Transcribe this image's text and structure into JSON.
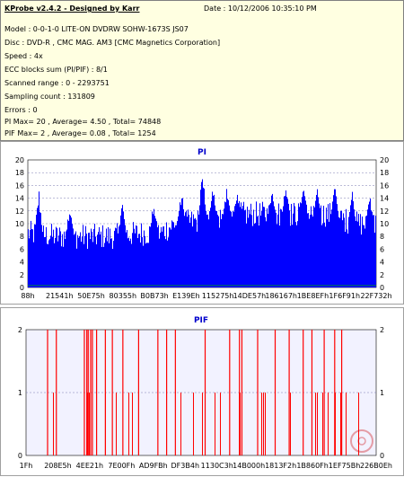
{
  "info": {
    "title": "KProbe v2.4.2 - Designed by Karr",
    "date": "Date : 10/12/2006 10:35:10 PM",
    "lines": [
      "Model : 0-0-1-0 LITE-ON DVDRW SOHW-1673S JS07",
      "Disc : DVD-R , CMC MAG. AM3 [CMC Magnetics Corporation]",
      "Speed : 4x",
      "ECC blocks sum (PI/PIF) : 8/1",
      "Scanned range : 0 - 2293751",
      "Sampling count : 131809",
      "Errors : 0",
      "PI Max= 20 , Average= 4.50 , Total= 74848",
      "PIF Max= 2 , Average= 0.08 , Total= 1254"
    ]
  },
  "chart_data": [
    {
      "type": "bar",
      "title": "PI",
      "ylim": [
        0,
        20
      ],
      "yticks": [
        0,
        2,
        4,
        6,
        8,
        10,
        12,
        14,
        16,
        18,
        20
      ],
      "xtick_labels": [
        "88h",
        "21541h",
        "50E75h",
        "80355h",
        "B0B73h",
        "E139Eh",
        "115275h",
        "14DE57h",
        "186167h",
        "1BE8EFh",
        "1F6F91h",
        "22F732h"
      ],
      "profile": [
        [
          0,
          8.5
        ],
        [
          0.08,
          8
        ],
        [
          0.16,
          8
        ],
        [
          0.24,
          8
        ],
        [
          0.32,
          8.5
        ],
        [
          0.38,
          8.5
        ],
        [
          0.42,
          10
        ],
        [
          0.5,
          10.5
        ],
        [
          0.56,
          11
        ],
        [
          0.62,
          11.5
        ],
        [
          0.7,
          11.5
        ],
        [
          0.78,
          11.5
        ],
        [
          0.86,
          11.5
        ],
        [
          0.94,
          10
        ],
        [
          1.0,
          10
        ]
      ],
      "peaks": [
        [
          0.03,
          16
        ],
        [
          0.12,
          14
        ],
        [
          0.27,
          14
        ],
        [
          0.36,
          14
        ],
        [
          0.44,
          15.5
        ],
        [
          0.5,
          20
        ],
        [
          0.53,
          17
        ],
        [
          0.57,
          16
        ],
        [
          0.6,
          15.5
        ],
        [
          0.7,
          15.5
        ],
        [
          0.74,
          17
        ],
        [
          0.79,
          16.5
        ],
        [
          0.83,
          15.5
        ],
        [
          0.88,
          16.5
        ],
        [
          0.93,
          15.5
        ],
        [
          0.98,
          15
        ]
      ]
    },
    {
      "type": "bar",
      "title": "PIF",
      "ylim": [
        0,
        2
      ],
      "yticks": [
        0,
        1,
        2
      ],
      "xtick_labels": [
        "1Fh",
        "208E5h",
        "4EE21h",
        "7E00Fh",
        "AD9FBh",
        "DF3B4h",
        "1130C3h",
        "14B000h",
        "1813F2h",
        "1B860Fh",
        "1EF75Bh",
        "226B0Eh"
      ],
      "values_2": [
        0.06,
        0.085,
        0.165,
        0.172,
        0.176,
        0.183,
        0.188,
        0.2,
        0.225,
        0.245,
        0.275,
        0.32,
        0.375,
        0.4,
        0.425,
        0.51,
        0.58,
        0.608,
        0.615,
        0.66,
        0.71,
        0.75,
        0.79,
        0.815,
        0.85,
        0.88,
        0.9
      ],
      "values_1_density": [
        [
          0,
          0.2
        ],
        [
          0.1,
          0.4
        ],
        [
          0.18,
          0.9
        ],
        [
          0.22,
          0.7
        ],
        [
          0.3,
          0.4
        ],
        [
          0.4,
          0.35
        ],
        [
          0.5,
          0.55
        ],
        [
          0.58,
          0.6
        ],
        [
          0.66,
          0.6
        ],
        [
          0.72,
          0.55
        ],
        [
          0.8,
          0.7
        ],
        [
          0.9,
          0.5
        ],
        [
          1.0,
          0.6
        ]
      ]
    }
  ]
}
